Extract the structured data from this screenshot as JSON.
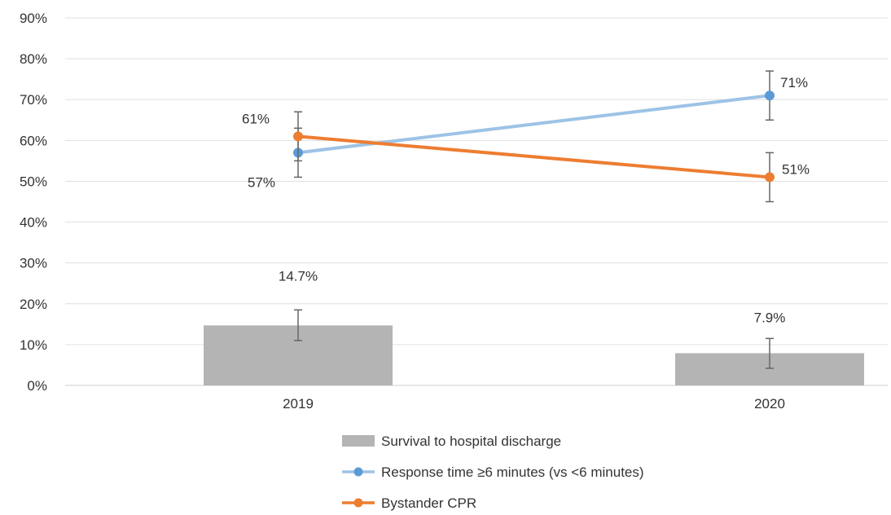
{
  "chart_data": {
    "type": "bar",
    "categories": [
      "2019",
      "2020"
    ],
    "ylim": [
      0,
      90
    ],
    "yticks": [
      0,
      10,
      20,
      30,
      40,
      50,
      60,
      70,
      80,
      90
    ],
    "ytick_format": "{v}%",
    "grid": true,
    "legend_position": "bottom",
    "series": [
      {
        "name": "Survival to hospital discharge",
        "kind": "bar",
        "color": "#b4b4b4",
        "values": [
          14.7,
          7.9
        ],
        "error_low": [
          11,
          4.2
        ],
        "error_high": [
          18.5,
          11.5
        ],
        "labels": [
          "14.7%",
          "7.9%"
        ]
      },
      {
        "name": "Response time ≥6 minutes (vs <6 minutes)",
        "kind": "line",
        "color": "#5b9bd5",
        "line_color": "#9dc3e6",
        "values": [
          57,
          71
        ],
        "error_low": [
          51,
          65
        ],
        "error_high": [
          63,
          77
        ],
        "labels": [
          "57%",
          "71%"
        ]
      },
      {
        "name": "Bystander CPR",
        "kind": "line",
        "color": "#ed7d31",
        "line_color": "#ed7d31",
        "values": [
          61,
          51
        ],
        "error_low": [
          55,
          45
        ],
        "error_high": [
          67,
          57
        ],
        "labels": [
          "61%",
          "51%"
        ]
      }
    ]
  }
}
